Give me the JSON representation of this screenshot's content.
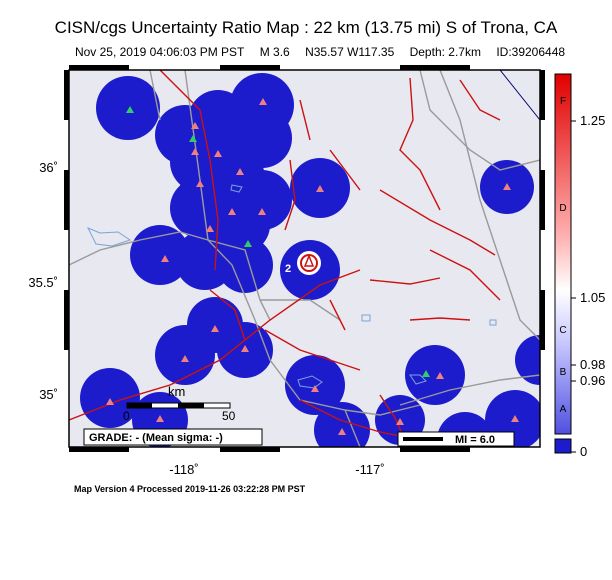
{
  "header": {
    "title": "CISN/cgs Uncertainty Ratio Map : 22 km (13.75 mi) S of Trona, CA",
    "event_time": "Nov 25, 2019 04:06:03 PM PST",
    "magnitude": "M 3.6",
    "location": "N35.57 W117.35",
    "depth": "Depth: 2.7km",
    "event_id": "ID:39206448"
  },
  "axes": {
    "y_ticks": [
      "36˚",
      "35.5˚",
      "35˚"
    ],
    "x_ticks": [
      "-118˚",
      "-117˚"
    ]
  },
  "map": {
    "scale_bar": {
      "label": "km",
      "start": "0",
      "end": "50"
    },
    "grade_label": "GRADE: - (Mean sigma: -)",
    "mi_legend": "MI = 6.0",
    "epicenter_label": "2",
    "colors": {
      "uncertainty": "#1c1ccc",
      "land": "#e8e8f0",
      "faults": "#cc1111",
      "roads": "#9a9a9a",
      "water": "#7aa3d8",
      "stations_seismic": "#f08080",
      "stations_strong": "#33cc66"
    }
  },
  "colorbar": {
    "tick_labels": [
      "1.25",
      "1.05",
      "0.98",
      "0.96",
      "0"
    ],
    "grade_letters": [
      "F",
      "D",
      "C",
      "B",
      "A"
    ]
  },
  "footer": {
    "processed": "Map Version 4 Processed 2019-11-26 03:22:28 PM PST"
  }
}
